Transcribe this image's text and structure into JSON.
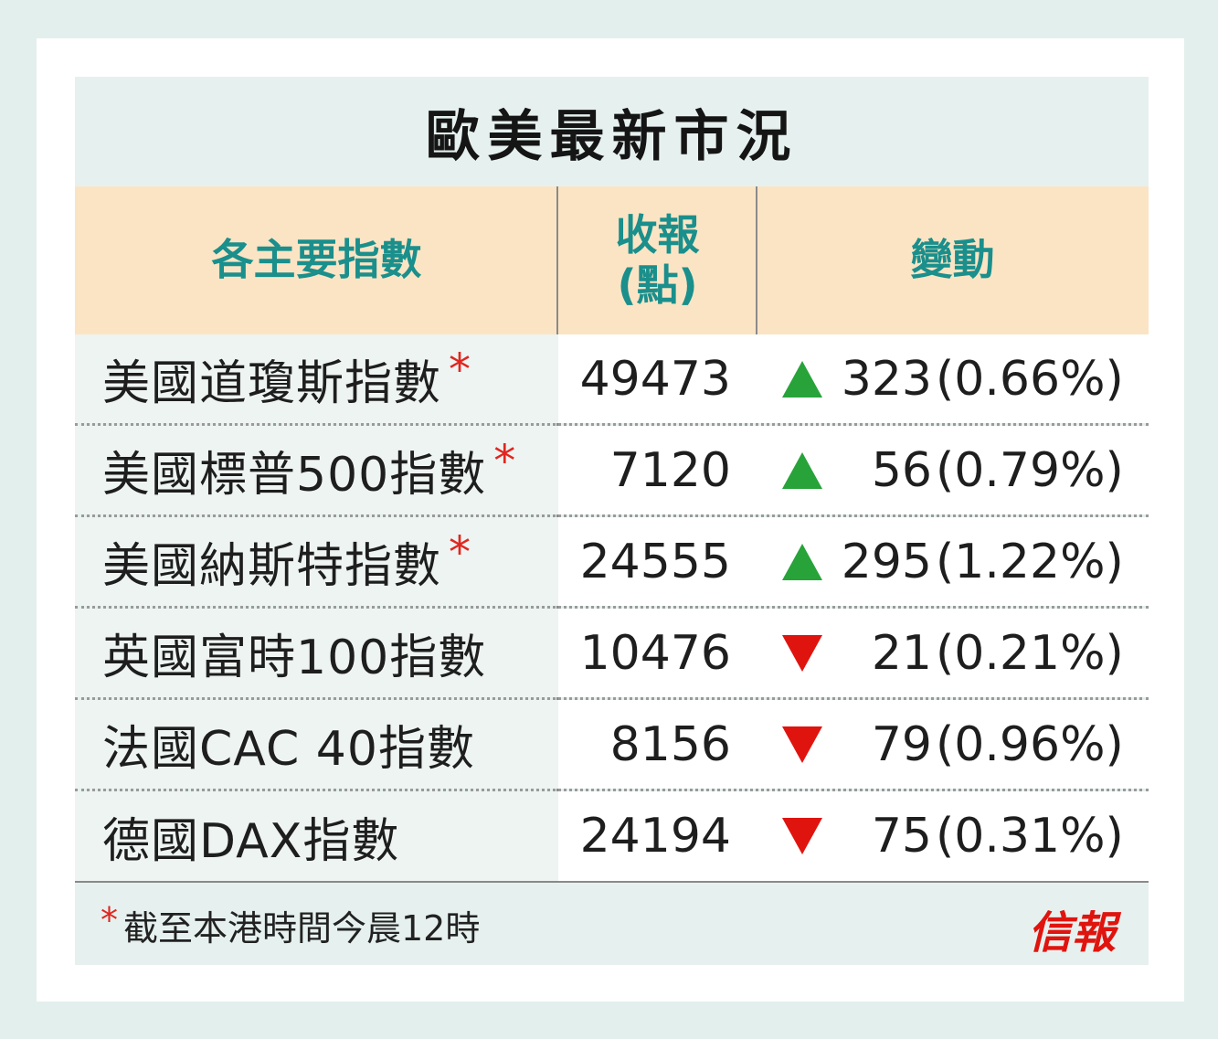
{
  "title": "歐美最新市況",
  "headers": {
    "index": "各主要指數",
    "close_line1": "收報",
    "close_line2": "(點)",
    "change": "變動"
  },
  "rows": [
    {
      "name": "美國道瓊斯指數",
      "star": "*",
      "close": "49473",
      "direction": "up",
      "points": "323",
      "pct": "(0.66%)"
    },
    {
      "name": "美國標普500指數",
      "star": "*",
      "close": "7120",
      "direction": "up",
      "points": "56",
      "pct": "(0.79%)"
    },
    {
      "name": "美國納斯特指數",
      "star": "*",
      "close": "24555",
      "direction": "up",
      "points": "295",
      "pct": "(1.22%)"
    },
    {
      "name": "英國富時100指數",
      "star": "",
      "close": "10476",
      "direction": "down",
      "points": "21",
      "pct": "(0.21%)"
    },
    {
      "name": "法國CAC 40指數",
      "star": "",
      "close": "8156",
      "direction": "down",
      "points": "79",
      "pct": "(0.96%)"
    },
    {
      "name": "德國DAX指數",
      "star": "",
      "close": "24194",
      "direction": "down",
      "points": "75",
      "pct": "(0.31%)"
    }
  ],
  "footnote": {
    "star": "*",
    "text": "截至本港時間今晨12時"
  },
  "logo": "信報",
  "colors": {
    "header_bg": "#fbe4c4",
    "header_text": "#1a8f8c",
    "up": "#27a33a",
    "down": "#e0140f",
    "star": "#e0261f"
  }
}
